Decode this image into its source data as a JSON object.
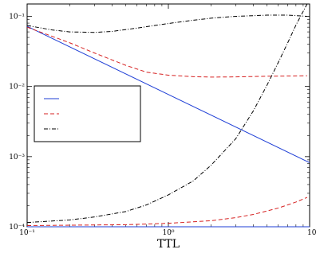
{
  "chart_data": {
    "type": "line",
    "xlabel": "TTL",
    "ylabel": "",
    "xscale": "log",
    "yscale": "log",
    "xlim": [
      0.1,
      10
    ],
    "ylim": [
      0.0001,
      0.15
    ],
    "grid": false,
    "legend": {
      "placement": "center-left",
      "entries": [
        {
          "series": 0,
          "label": ""
        },
        {
          "series": 1,
          "label": ""
        },
        {
          "series": 2,
          "label": ""
        }
      ]
    },
    "x_ticks": [
      {
        "value": 0.1,
        "label": "10⁻¹"
      },
      {
        "value": 1,
        "label": "10⁰"
      },
      {
        "value": 10,
        "label": "10¹"
      }
    ],
    "y_ticks": [
      {
        "value": 0.1,
        "label": "10⁻¹"
      },
      {
        "value": 0.01,
        "label": "10⁻²"
      },
      {
        "value": 0.001,
        "label": "10⁻³"
      },
      {
        "value": 0.0001,
        "label": "10⁻⁴"
      }
    ],
    "series": [
      {
        "color": "#1f3fd6",
        "style": "solid",
        "x": [
          0.1,
          10
        ],
        "y": [
          0.072,
          0.00082
        ]
      },
      {
        "color": "#d62020",
        "style": "dashed",
        "x": [
          0.1,
          0.2,
          0.3,
          0.5,
          0.7,
          1.0,
          1.5,
          2.0,
          3.0,
          5.0,
          7.0,
          9.6
        ],
        "y": [
          0.07,
          0.042,
          0.03,
          0.02,
          0.016,
          0.0145,
          0.0138,
          0.0136,
          0.0137,
          0.014,
          0.0141,
          0.0142
        ]
      },
      {
        "color": "#000000",
        "style": "dashdot",
        "x": [
          0.1,
          0.15,
          0.2,
          0.3,
          0.4,
          0.6,
          0.8,
          1.0,
          1.5,
          2.0,
          3.0,
          5.0,
          7.0,
          9.6
        ],
        "y": [
          0.074,
          0.064,
          0.06,
          0.059,
          0.061,
          0.068,
          0.074,
          0.079,
          0.088,
          0.094,
          0.1,
          0.104,
          0.104,
          0.1
        ]
      },
      {
        "color": "#1f3fd6",
        "style": "solid",
        "x": [
          0.1,
          10
        ],
        "y": [
          0.0001,
          0.0001
        ]
      },
      {
        "color": "#d62020",
        "style": "dashed",
        "x": [
          0.1,
          0.5,
          1.0,
          2.0,
          3.0,
          4.0,
          5.0,
          6.0,
          7.0,
          8.0,
          9.6
        ],
        "y": [
          0.000104,
          0.000107,
          0.000112,
          0.000122,
          0.000135,
          0.00015,
          0.000168,
          0.000185,
          0.000205,
          0.000225,
          0.000262
        ]
      },
      {
        "color": "#000000",
        "style": "dashdot",
        "x": [
          0.1,
          0.2,
          0.3,
          0.5,
          0.7,
          1.0,
          1.5,
          2.0,
          3.0,
          4.0,
          5.0,
          6.0,
          7.0,
          8.0,
          9.6
        ],
        "y": [
          0.000115,
          0.000125,
          0.000138,
          0.000165,
          0.000205,
          0.000285,
          0.00045,
          0.00075,
          0.0018,
          0.0045,
          0.0105,
          0.022,
          0.042,
          0.075,
          0.15
        ]
      }
    ]
  }
}
